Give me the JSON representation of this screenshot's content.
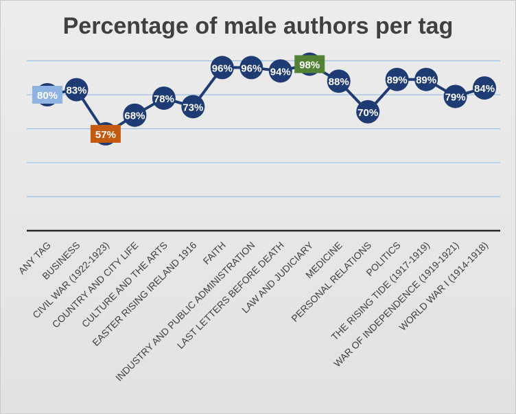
{
  "colors": {
    "line": "#1f3b73",
    "marker": "#1f3b73",
    "grid": "#9ec0e8",
    "axis": "#262626",
    "label_text": "#ffffff",
    "tick_text": "#404040",
    "highlight_avg": "#8fb3e3",
    "highlight_min": "#c55a11",
    "highlight_max": "#548235"
  },
  "chart_data": {
    "type": "line",
    "title": "Percentage of male authors per tag",
    "xlabel": "",
    "ylabel": "",
    "ylim": [
      0,
      100
    ],
    "grid": true,
    "legend": "none",
    "categories": [
      "ANY TAG",
      "BUSINESS",
      "CIVIL WAR (1922-1923)",
      "COUNTRY AND CITY LIFE",
      "CULTURE AND THE ARTS",
      "EASTER RISING IRELAND 1916",
      "FAITH",
      "INDUSTRY AND PUBLIC ADMINISTRATION",
      "LAST LETTERS BEFORE DEATH",
      "LAW AND JUDICIARY",
      "MEDICINE",
      "PERSONAL RELATIONS",
      "POLITICS",
      "THE RISING TIDE (1917-1919)",
      "WAR OF INDEPENDENCE (1919-1921)",
      "WORLD WAR I (1914-1918)"
    ],
    "values": [
      80,
      83,
      57,
      68,
      78,
      73,
      96,
      96,
      94,
      98,
      88,
      70,
      89,
      89,
      79,
      84
    ],
    "data_labels": [
      "80%",
      "83%",
      "57%",
      "68%",
      "78%",
      "73%",
      "96%",
      "96%",
      "94%",
      "98%",
      "88%",
      "70%",
      "89%",
      "89%",
      "79%",
      "84%"
    ],
    "highlights": {
      "0": "highlight_avg",
      "2": "highlight_min",
      "9": "highlight_max"
    }
  }
}
